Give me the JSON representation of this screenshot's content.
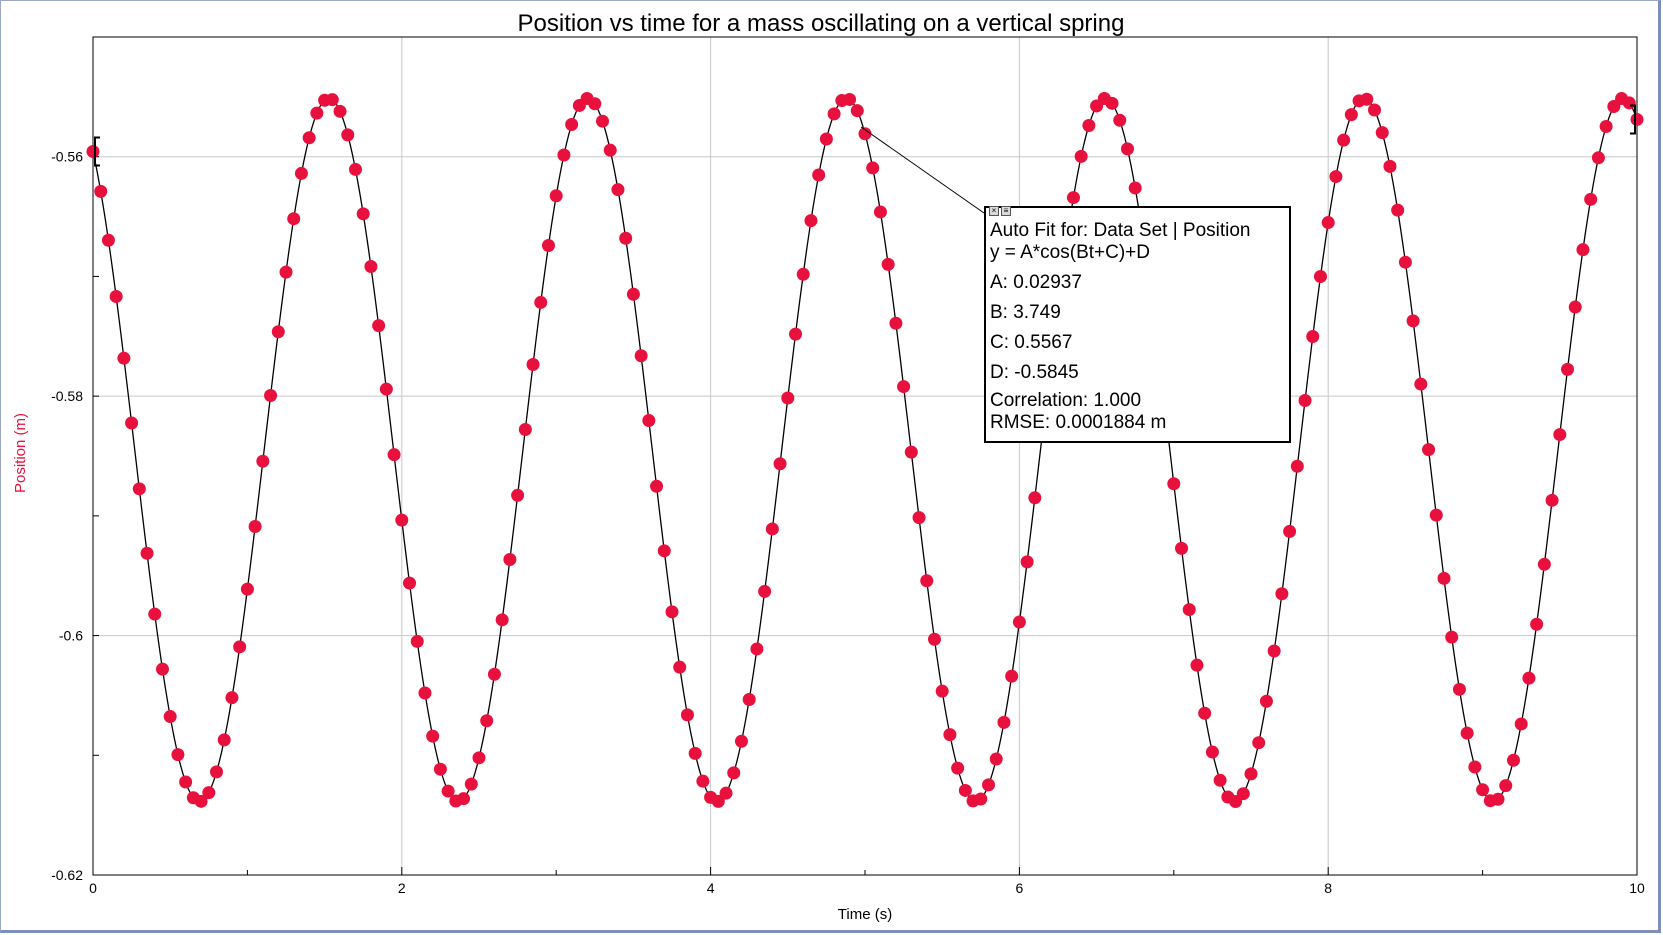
{
  "chart_data": {
    "type": "scatter",
    "title": "Position vs time for a mass oscillating on a vertical spring",
    "xlabel": "Time (s)",
    "ylabel": "Position (m)",
    "xlim": [
      0,
      10
    ],
    "ylim": [
      -0.62,
      -0.55
    ],
    "x_ticks": [
      "0",
      "2",
      "4",
      "6",
      "8",
      "10"
    ],
    "y_ticks": [
      "-0.56",
      "-0.58",
      "-0.6",
      "-0.62"
    ],
    "grid": true,
    "marker_color": "#e8103c",
    "fit_line_color": "#000000",
    "sample_interval": 0.05,
    "x_range": [
      0,
      10
    ],
    "fit": {
      "equation": "y = A*cos(Bt+C)+D",
      "A": 0.02937,
      "B": 3.749,
      "C": 0.5567,
      "D": -0.5845
    }
  },
  "fit_box": {
    "heading": "Auto Fit for: Data Set | Position",
    "equation": "y = A*cos(Bt+C)+D",
    "a_line": "A: 0.02937",
    "b_line": "B: 3.749",
    "c_line": "C: 0.5567",
    "d_line": "D: -0.5845",
    "correlation_line": "Correlation: 1.000",
    "rmse_line": "RMSE: 0.0001884 m"
  }
}
